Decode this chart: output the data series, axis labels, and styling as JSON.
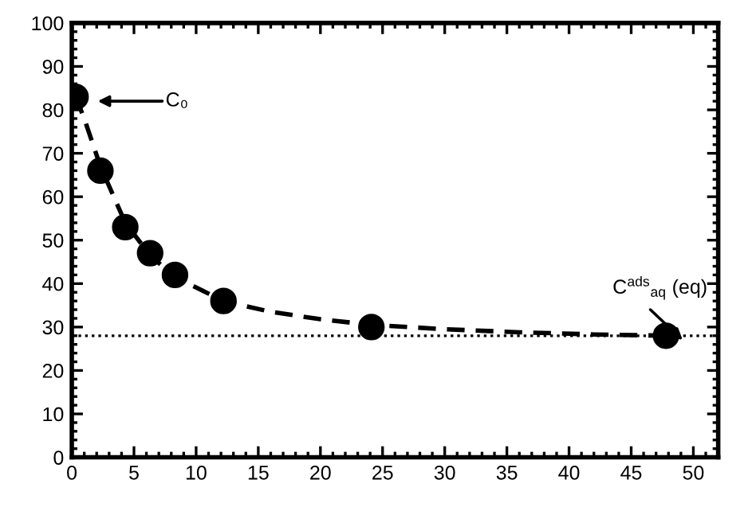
{
  "chart_data": {
    "type": "scatter",
    "series": [
      {
        "color": "#000000",
        "marker": "circle",
        "x": [
          0.3,
          2.3,
          4.3,
          6.3,
          8.3,
          12.2,
          24.1,
          47.8
        ],
        "values": [
          83,
          66,
          53,
          47,
          42,
          36,
          30,
          28
        ]
      },
      {
        "type": "line",
        "color": "#000000",
        "line_style": "dashed",
        "x": [
          0.3,
          1,
          2.3,
          4.3,
          6.3,
          8.3,
          12.2,
          16,
          20,
          24.1,
          30,
          36,
          42,
          48
        ],
        "values": [
          83,
          78,
          67,
          54,
          46.5,
          41.5,
          36,
          33.5,
          31.8,
          30.5,
          29.5,
          28.8,
          28.3,
          28
        ]
      }
    ],
    "ref_lines": [
      {
        "axis": "y",
        "value": 28,
        "color": "#000000",
        "line_style": "dotted"
      }
    ],
    "annotations": [
      "C₀",
      "C$^{ads}$$_{aq}$ (eq)"
    ],
    "xlim": [
      0,
      52
    ],
    "xticks": [
      0,
      5,
      10,
      15,
      20,
      25,
      30,
      35,
      40,
      45,
      50
    ],
    "ylim": [
      0,
      100
    ],
    "yticks": [
      0,
      10,
      20,
      30,
      40,
      50,
      60,
      70,
      80,
      90,
      100
    ],
    "grid": false,
    "legend": false
  }
}
